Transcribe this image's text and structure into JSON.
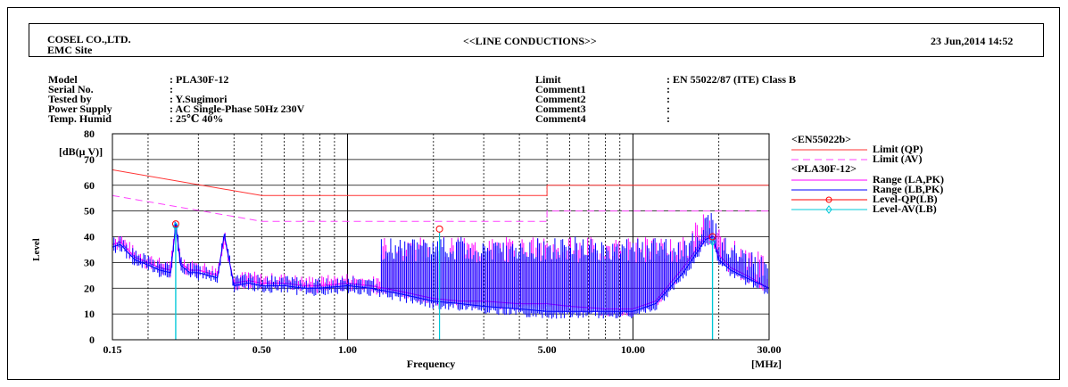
{
  "header": {
    "company": "COSEL CO.,LTD.",
    "site": "EMC Site",
    "title": "<<LINE CONDUCTIONS>>",
    "datetime": "23 Jun,2014 14:52"
  },
  "info_left": {
    "labels": [
      "Model",
      "Serial No.",
      "Tested by",
      "Power Supply",
      "Temp. Humid"
    ],
    "values": [
      ": PLA30F-12",
      ":",
      ": Y.Sugimori",
      ": AC Single-Phase 50Hz 230V",
      ": 25℃ 40%"
    ]
  },
  "info_right": {
    "labels": [
      "Limit",
      "Comment1",
      "Comment2",
      "Comment3",
      "Comment4"
    ],
    "values": [
      ": EN 55022/87 (ITE) Class B",
      ":",
      ":",
      ":",
      ":"
    ]
  },
  "legend": {
    "group1_title": "<EN55022b>",
    "limit_qp": "Limit (QP)",
    "limit_av": "Limit (AV)",
    "group2_title": "<PLA30F-12>",
    "range_la": "Range (LA,PK)",
    "range_lb": "Range (LB,PK)",
    "level_qp": "Level-QP(LB)",
    "level_av": "Level-AV(LB)"
  },
  "colors": {
    "limit": "#ff3333",
    "limit_av": "#ff44ff",
    "range_la": "#ff00ff",
    "range_lb": "#0000ff",
    "level_qp": "#ff0000",
    "level_av": "#00c8d8",
    "grid": "#000000"
  },
  "chart_data": {
    "type": "line",
    "x_scale": "log",
    "xlim": [
      0.15,
      30
    ],
    "ylim": [
      0,
      80
    ],
    "ylabel_unit": "[dB(μ V)]",
    "ylabel": "Level",
    "xlabel": "Frequency",
    "xunit": "[MHz]",
    "x_ticks": [
      "0.15",
      "0.50",
      "1.00",
      "5.00",
      "10.00",
      "30.00"
    ],
    "x_tick_values": [
      0.15,
      0.5,
      1,
      5,
      10,
      30
    ],
    "y_ticks": [
      "0",
      "10",
      "20",
      "30",
      "40",
      "50",
      "60",
      "70",
      "80"
    ],
    "grid": true,
    "legend_position": "right",
    "limit_qp": {
      "x": [
        0.15,
        0.5,
        0.5,
        5,
        5,
        30
      ],
      "y": [
        66,
        56,
        56,
        56,
        60,
        60
      ]
    },
    "limit_av": {
      "x": [
        0.15,
        0.5,
        0.5,
        5,
        5,
        30
      ],
      "y": [
        56,
        46,
        46,
        46,
        50,
        50
      ]
    },
    "range_la_pk": {
      "x": [
        0.15,
        0.16,
        0.18,
        0.2,
        0.22,
        0.24,
        0.25,
        0.26,
        0.28,
        0.3,
        0.35,
        0.37,
        0.4,
        0.45,
        0.5,
        0.6,
        0.7,
        0.8,
        1.0,
        1.2,
        1.5,
        2.0,
        2.5,
        3.0,
        4.0,
        5.0,
        6.0,
        8.0,
        10.0,
        12.0,
        15.0,
        18.0,
        19.0,
        20.0,
        22.0,
        25.0,
        30.0
      ],
      "y": [
        37,
        38,
        32,
        30,
        28,
        27,
        44,
        30,
        27,
        27,
        25,
        40,
        22,
        23,
        22,
        22,
        21,
        21,
        22,
        21,
        19,
        16,
        15,
        15,
        14,
        14,
        13,
        12,
        12,
        15,
        28,
        40,
        40,
        33,
        28,
        25,
        20
      ]
    },
    "range_lb_pk": {
      "x": [
        0.15,
        0.16,
        0.18,
        0.2,
        0.22,
        0.24,
        0.25,
        0.26,
        0.28,
        0.3,
        0.35,
        0.37,
        0.4,
        0.45,
        0.5,
        0.6,
        0.7,
        0.8,
        1.0,
        1.2,
        1.5,
        2.0,
        2.5,
        3.0,
        4.0,
        5.0,
        6.0,
        8.0,
        10.0,
        12.0,
        15.0,
        18.0,
        19.0,
        20.0,
        22.0,
        25.0,
        30.0
      ],
      "y": [
        36,
        37,
        31,
        29,
        27,
        26,
        45,
        29,
        26,
        26,
        24,
        41,
        21,
        22,
        21,
        21,
        20,
        20,
        21,
        20,
        18,
        15,
        14,
        13,
        12,
        11,
        11,
        11,
        11,
        14,
        26,
        39,
        40,
        31,
        27,
        24,
        20
      ]
    },
    "level_qp_lb": {
      "x": [
        0.25,
        2.1,
        19.0
      ],
      "y": [
        45,
        43,
        40
      ]
    },
    "level_av_lb": {
      "x": [
        0.25,
        19.0
      ],
      "y": [
        44,
        38
      ]
    }
  }
}
